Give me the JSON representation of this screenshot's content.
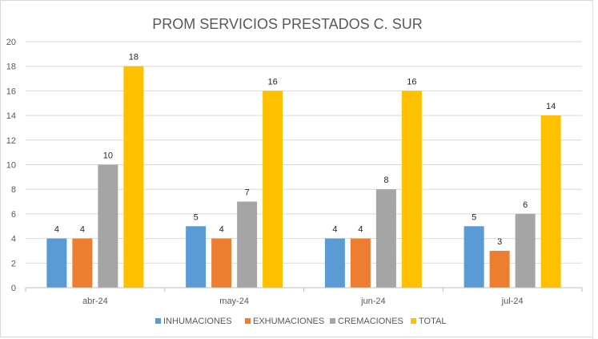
{
  "chart_data": {
    "type": "bar",
    "title": "PROM SERVICIOS PRESTADOS C. SUR",
    "categories": [
      "abr-24",
      "may-24",
      "jun-24",
      "jul-24"
    ],
    "series": [
      {
        "name": "INHUMACIONES",
        "color": "#5B9BD5",
        "values": [
          4,
          5,
          4,
          5
        ]
      },
      {
        "name": "EXHUMACIONES",
        "color": "#ED7D31",
        "values": [
          4,
          4,
          4,
          3
        ]
      },
      {
        "name": "CREMACIONES",
        "color": "#A5A5A5",
        "values": [
          10,
          7,
          8,
          6
        ]
      },
      {
        "name": "TOTAL",
        "color": "#FFC000",
        "values": [
          18,
          16,
          16,
          14
        ]
      }
    ],
    "ylim": [
      0,
      20
    ],
    "yticks": [
      0,
      2,
      4,
      6,
      8,
      10,
      12,
      14,
      16,
      18,
      20
    ],
    "grid": true,
    "legend": "bottom"
  }
}
